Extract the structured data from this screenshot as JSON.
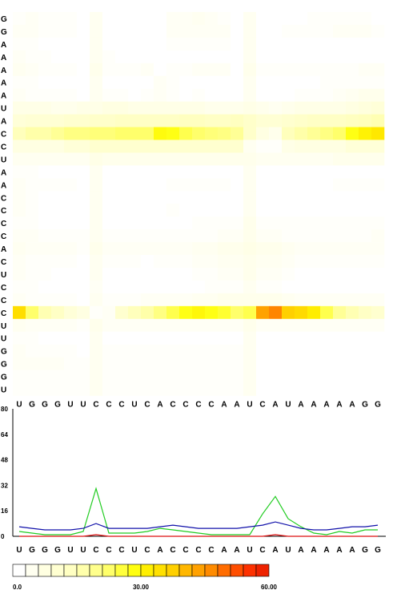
{
  "chart_data": [
    {
      "type": "heatmap",
      "title": "",
      "x_labels": [
        "U",
        "G",
        "G",
        "G",
        "U",
        "U",
        "C",
        "C",
        "C",
        "U",
        "C",
        "A",
        "C",
        "C",
        "C",
        "C",
        "A",
        "A",
        "U",
        "C",
        "A",
        "U",
        "A",
        "A",
        "A",
        "A",
        "A",
        "G",
        "G"
      ],
      "y_labels": [
        "G",
        "G",
        "A",
        "A",
        "A",
        "A",
        "A",
        "U",
        "A",
        "C",
        "C",
        "U",
        "A",
        "A",
        "C",
        "C",
        "C",
        "C",
        "A",
        "C",
        "U",
        "C",
        "C",
        "C",
        "U",
        "U",
        "G",
        "G",
        "G",
        "U"
      ],
      "values": [
        [
          1,
          2,
          1,
          1,
          1,
          0,
          3,
          0,
          0,
          0,
          0,
          0,
          2,
          2,
          3,
          2,
          1,
          0,
          3,
          0,
          0,
          0,
          0,
          1,
          1,
          1,
          1,
          1,
          0
        ],
        [
          2,
          2,
          1,
          1,
          1,
          0,
          3,
          0,
          0,
          0,
          0,
          0,
          2,
          2,
          2,
          2,
          2,
          0,
          3,
          0,
          0,
          1,
          1,
          1,
          1,
          2,
          2,
          2,
          1
        ],
        [
          1,
          1,
          0,
          0,
          0,
          0,
          3,
          0,
          0,
          0,
          0,
          0,
          1,
          1,
          1,
          1,
          1,
          0,
          3,
          0,
          0,
          0,
          0,
          0,
          0,
          0,
          0,
          0,
          0
        ],
        [
          2,
          1,
          1,
          0,
          0,
          0,
          3,
          1,
          0,
          0,
          0,
          0,
          0,
          0,
          0,
          0,
          0,
          0,
          3,
          0,
          0,
          0,
          0,
          0,
          0,
          0,
          0,
          0,
          0
        ],
        [
          3,
          2,
          1,
          1,
          1,
          0,
          4,
          1,
          1,
          1,
          2,
          0,
          1,
          1,
          2,
          2,
          2,
          0,
          4,
          1,
          1,
          1,
          1,
          1,
          1,
          1,
          1,
          2,
          2
        ],
        [
          1,
          1,
          0,
          0,
          0,
          0,
          3,
          0,
          0,
          0,
          0,
          2,
          1,
          0,
          0,
          0,
          0,
          0,
          3,
          0,
          0,
          0,
          0,
          0,
          1,
          1,
          1,
          1,
          1
        ],
        [
          2,
          1,
          1,
          1,
          1,
          0,
          3,
          1,
          1,
          0,
          1,
          2,
          1,
          0,
          1,
          0,
          0,
          0,
          3,
          0,
          0,
          0,
          1,
          1,
          1,
          2,
          3,
          4,
          4
        ],
        [
          5,
          5,
          5,
          4,
          4,
          5,
          5,
          6,
          6,
          5,
          5,
          5,
          5,
          5,
          5,
          4,
          4,
          4,
          5,
          4,
          3,
          4,
          5,
          5,
          5,
          5,
          6,
          7,
          8
        ],
        [
          8,
          9,
          9,
          9,
          10,
          10,
          11,
          11,
          12,
          12,
          12,
          12,
          12,
          13,
          13,
          12,
          12,
          13,
          11,
          9,
          9,
          10,
          11,
          12,
          12,
          12,
          13,
          14,
          15
        ],
        [
          14,
          16,
          16,
          18,
          20,
          20,
          21,
          21,
          22,
          22,
          22,
          29,
          28,
          24,
          22,
          21,
          20,
          18,
          11,
          6,
          4,
          14,
          16,
          18,
          20,
          22,
          28,
          31,
          33
        ],
        [
          6,
          6,
          6,
          6,
          8,
          8,
          10,
          10,
          10,
          10,
          10,
          10,
          10,
          10,
          10,
          10,
          10,
          10,
          3,
          1,
          1,
          5,
          6,
          6,
          6,
          6,
          8,
          8,
          8
        ],
        [
          3,
          3,
          3,
          3,
          3,
          3,
          5,
          4,
          4,
          4,
          4,
          4,
          4,
          4,
          4,
          4,
          4,
          4,
          4,
          3,
          3,
          3,
          3,
          3,
          3,
          4,
          4,
          4,
          4
        ],
        [
          1,
          1,
          0,
          0,
          0,
          0,
          3,
          0,
          0,
          0,
          0,
          0,
          0,
          0,
          0,
          0,
          0,
          0,
          3,
          0,
          0,
          0,
          0,
          0,
          0,
          0,
          0,
          0,
          0
        ],
        [
          2,
          1,
          1,
          1,
          1,
          0,
          3,
          0,
          0,
          0,
          0,
          0,
          1,
          1,
          1,
          1,
          1,
          0,
          3,
          0,
          0,
          0,
          0,
          0,
          0,
          1,
          1,
          1,
          1
        ],
        [
          2,
          1,
          0,
          0,
          0,
          0,
          3,
          0,
          0,
          0,
          0,
          0,
          0,
          0,
          0,
          0,
          0,
          0,
          3,
          0,
          0,
          0,
          0,
          0,
          0,
          0,
          0,
          0,
          0
        ],
        [
          2,
          1,
          0,
          0,
          0,
          0,
          3,
          0,
          0,
          0,
          0,
          0,
          1,
          0,
          0,
          0,
          0,
          0,
          3,
          0,
          0,
          0,
          0,
          0,
          0,
          0,
          0,
          0,
          0
        ],
        [
          1,
          1,
          0,
          0,
          0,
          0,
          3,
          0,
          0,
          0,
          0,
          0,
          0,
          0,
          1,
          1,
          1,
          1,
          4,
          1,
          1,
          1,
          1,
          1,
          1,
          1,
          1,
          1,
          1
        ],
        [
          2,
          2,
          1,
          1,
          1,
          1,
          3,
          1,
          1,
          1,
          1,
          1,
          1,
          1,
          1,
          1,
          2,
          2,
          4,
          2,
          2,
          1,
          1,
          1,
          1,
          1,
          1,
          1,
          2
        ],
        [
          3,
          2,
          2,
          2,
          2,
          1,
          4,
          2,
          2,
          2,
          2,
          2,
          2,
          2,
          3,
          3,
          4,
          4,
          5,
          4,
          4,
          3,
          2,
          2,
          2,
          2,
          2,
          2,
          2
        ],
        [
          2,
          1,
          1,
          1,
          1,
          0,
          3,
          1,
          1,
          1,
          0,
          1,
          1,
          1,
          2,
          2,
          3,
          3,
          4,
          3,
          3,
          2,
          1,
          1,
          1,
          1,
          1,
          1,
          1
        ],
        [
          2,
          1,
          1,
          0,
          0,
          0,
          3,
          0,
          0,
          0,
          0,
          0,
          0,
          0,
          1,
          1,
          2,
          2,
          4,
          2,
          2,
          1,
          0,
          0,
          0,
          0,
          0,
          0,
          0
        ],
        [
          1,
          1,
          0,
          0,
          0,
          0,
          2,
          0,
          0,
          0,
          0,
          0,
          0,
          0,
          0,
          1,
          1,
          1,
          3,
          1,
          1,
          0,
          0,
          0,
          0,
          0,
          0,
          0,
          0
        ],
        [
          2,
          1,
          1,
          1,
          1,
          0,
          3,
          1,
          1,
          1,
          2,
          2,
          2,
          2,
          3,
          3,
          4,
          4,
          4,
          4,
          4,
          3,
          2,
          2,
          2,
          2,
          2,
          2,
          2
        ],
        [
          35,
          22,
          15,
          12,
          8,
          6,
          1,
          2,
          10,
          14,
          16,
          20,
          24,
          28,
          30,
          28,
          26,
          22,
          24,
          44,
          48,
          38,
          36,
          32,
          24,
          18,
          15,
          12,
          10
        ],
        [
          3,
          2,
          2,
          2,
          2,
          1,
          4,
          2,
          2,
          2,
          2,
          2,
          2,
          2,
          2,
          2,
          2,
          2,
          4,
          2,
          2,
          2,
          2,
          2,
          2,
          2,
          2,
          2,
          2
        ],
        [
          1,
          1,
          0,
          0,
          0,
          0,
          3,
          0,
          0,
          0,
          0,
          0,
          0,
          0,
          0,
          0,
          0,
          0,
          3,
          0,
          0,
          0,
          0,
          0,
          0,
          0,
          0,
          0,
          0
        ],
        [
          2,
          1,
          1,
          1,
          1,
          0,
          3,
          1,
          1,
          1,
          1,
          1,
          1,
          1,
          1,
          1,
          1,
          1,
          3,
          0,
          0,
          0,
          0,
          0,
          0,
          0,
          0,
          0,
          0
        ],
        [
          2,
          2,
          2,
          2,
          1,
          1,
          3,
          1,
          1,
          1,
          1,
          1,
          1,
          1,
          1,
          1,
          1,
          1,
          3,
          0,
          0,
          0,
          0,
          0,
          0,
          0,
          0,
          0,
          0
        ],
        [
          1,
          1,
          1,
          1,
          1,
          1,
          3,
          1,
          1,
          1,
          1,
          1,
          1,
          1,
          1,
          1,
          1,
          1,
          3,
          0,
          0,
          0,
          0,
          0,
          0,
          0,
          0,
          0,
          0
        ],
        [
          1,
          1,
          1,
          1,
          1,
          1,
          3,
          1,
          1,
          1,
          1,
          1,
          1,
          1,
          1,
          1,
          1,
          1,
          3,
          0,
          0,
          0,
          0,
          0,
          0,
          0,
          0,
          0,
          0
        ]
      ],
      "color_scale": {
        "min": 0,
        "max": 60,
        "tick_labels": [
          "0.0",
          "30.00",
          "60.00"
        ],
        "stops": [
          "#ffffff",
          "#ffffee",
          "#ffffdd",
          "#ffffcc",
          "#ffffbb",
          "#ffff99",
          "#ffff77",
          "#ffff44",
          "#ffff11",
          "#ffee00",
          "#ffdd00",
          "#ffcc00",
          "#ffaa00",
          "#ff9900",
          "#ff7700",
          "#ff5500",
          "#ff3300",
          "#ee2200"
        ]
      }
    },
    {
      "type": "line",
      "title": "",
      "categories": [
        "U",
        "G",
        "G",
        "G",
        "U",
        "U",
        "C",
        "C",
        "C",
        "U",
        "C",
        "A",
        "C",
        "C",
        "C",
        "C",
        "A",
        "A",
        "U",
        "C",
        "A",
        "U",
        "A",
        "A",
        "A",
        "A",
        "A",
        "G",
        "G"
      ],
      "ylim": [
        0,
        80
      ],
      "yticks": [
        "0",
        "16",
        "32",
        "48",
        "64",
        "80"
      ],
      "series": [
        {
          "color": "#22cc22",
          "values": [
            3,
            2,
            1,
            1,
            1,
            3,
            30,
            2,
            2,
            2,
            3,
            5,
            4,
            3,
            2,
            1,
            1,
            1,
            1,
            14,
            25,
            11,
            6,
            2,
            1,
            3,
            2,
            4,
            4
          ]
        },
        {
          "color": "#1111aa",
          "values": [
            6,
            5,
            4,
            4,
            4,
            5,
            8,
            5,
            5,
            5,
            5,
            6,
            7,
            6,
            5,
            5,
            5,
            5,
            6,
            7,
            9,
            7,
            5,
            4,
            4,
            5,
            6,
            6,
            7
          ]
        },
        {
          "color": "#dd1111",
          "values": [
            0,
            0,
            0,
            0,
            0,
            0,
            1,
            0,
            0,
            0,
            0,
            0,
            0,
            0,
            0,
            0,
            0,
            0,
            0,
            0,
            1,
            0,
            0,
            0,
            0,
            0,
            0,
            0,
            0
          ]
        }
      ]
    }
  ]
}
